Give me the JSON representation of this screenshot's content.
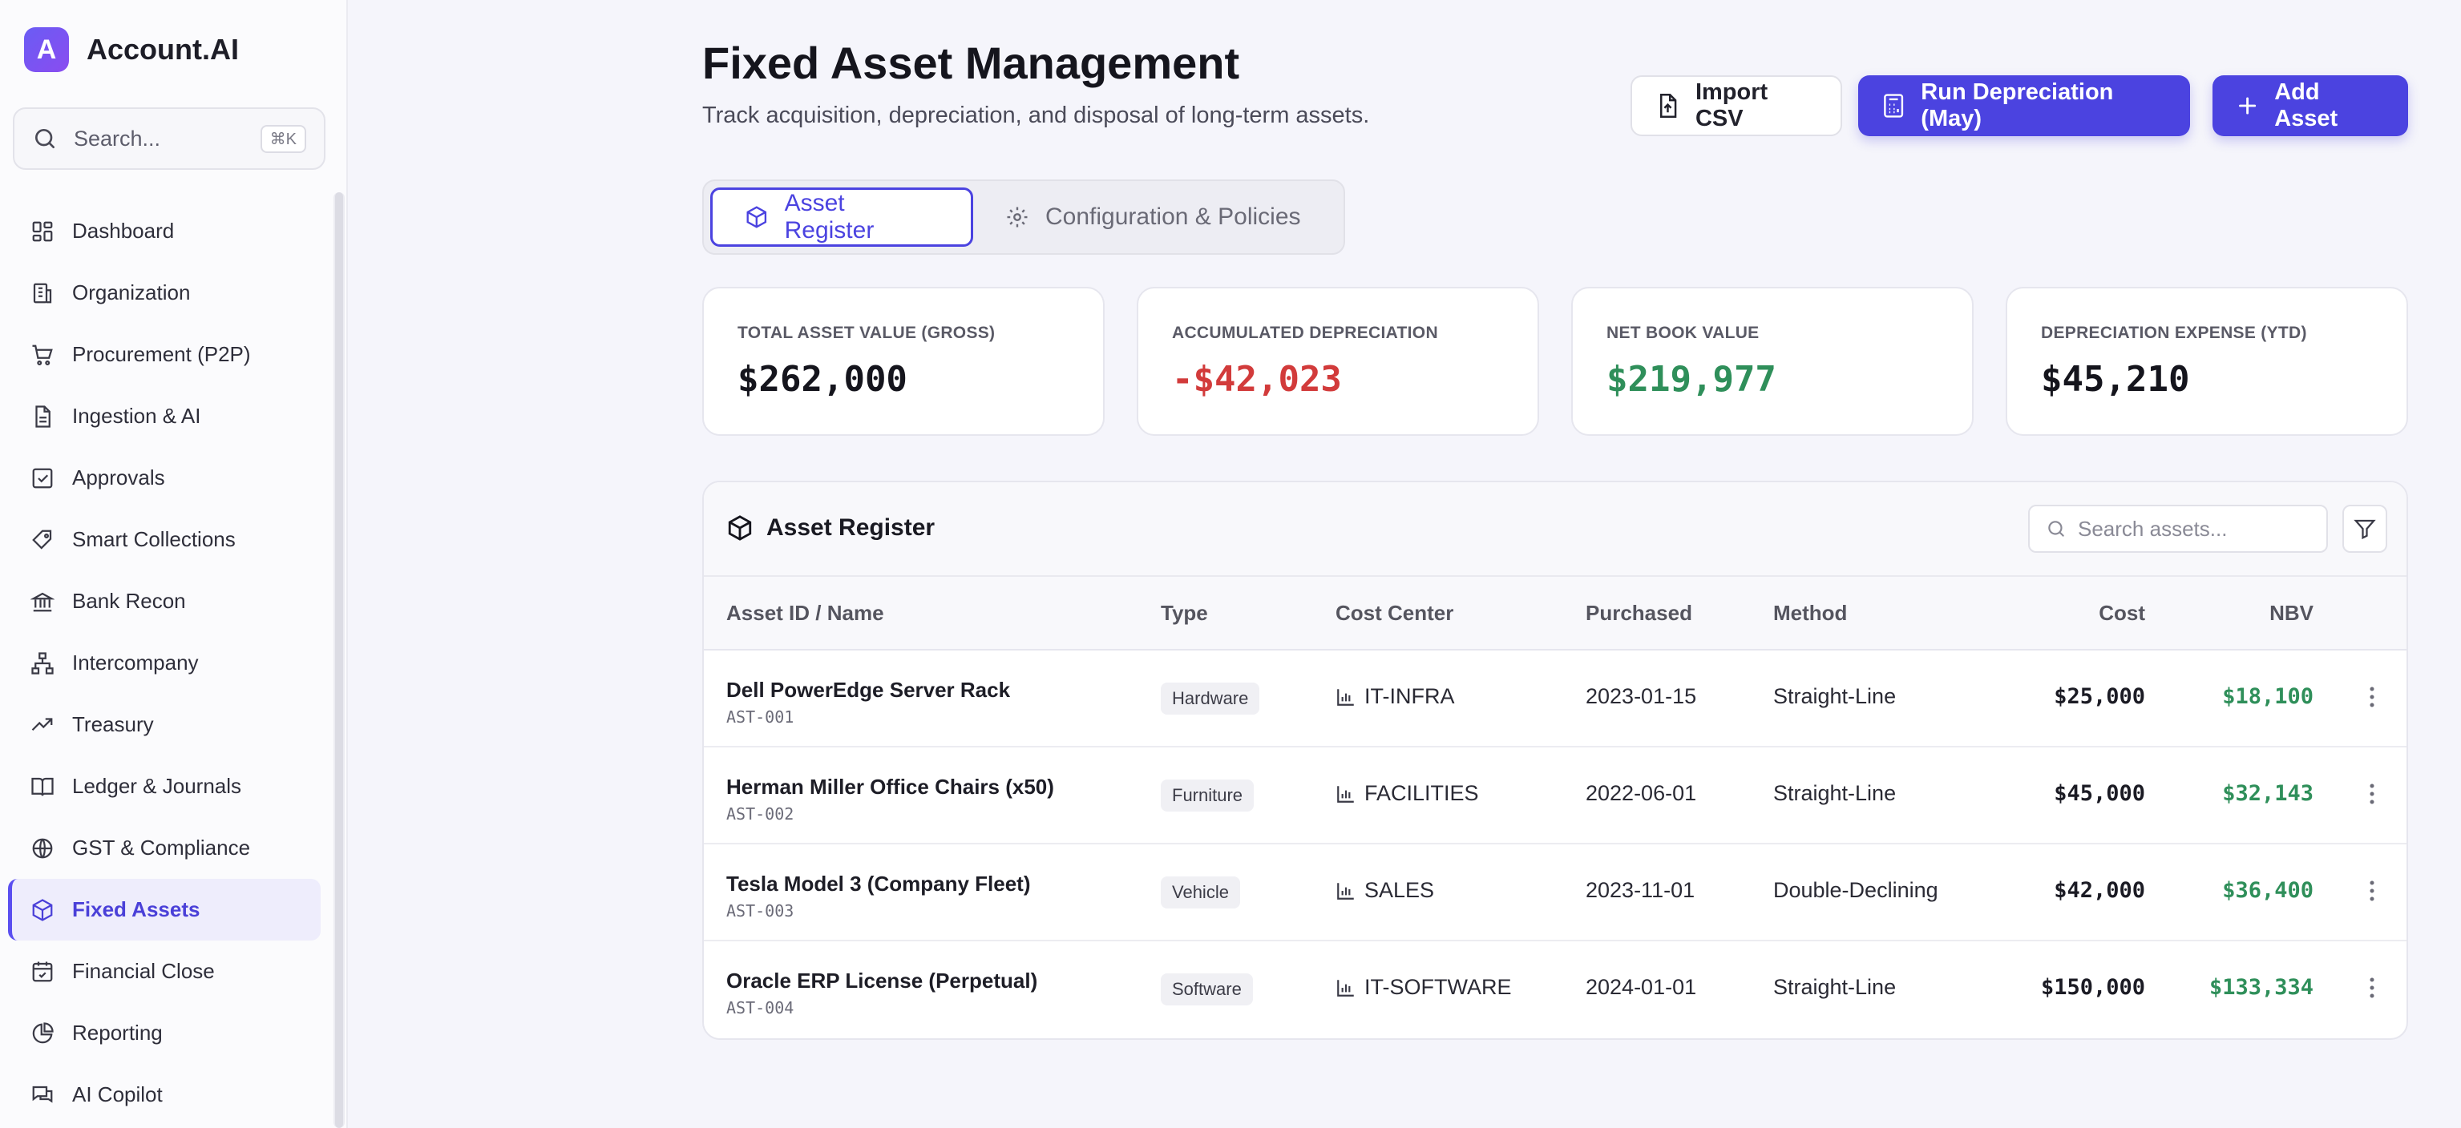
{
  "app": {
    "logo_letter": "A",
    "name": "Account.AI"
  },
  "sidebar": {
    "search_placeholder": "Search...",
    "search_shortcut": "⌘K",
    "items": [
      {
        "label": "Dashboard",
        "icon": "dashboard-icon"
      },
      {
        "label": "Organization",
        "icon": "building-icon"
      },
      {
        "label": "Procurement (P2P)",
        "icon": "cart-icon"
      },
      {
        "label": "Ingestion & AI",
        "icon": "document-icon"
      },
      {
        "label": "Approvals",
        "icon": "check-square-icon"
      },
      {
        "label": "Smart Collections",
        "icon": "tag-icon"
      },
      {
        "label": "Bank Recon",
        "icon": "bank-icon"
      },
      {
        "label": "Intercompany",
        "icon": "network-icon"
      },
      {
        "label": "Treasury",
        "icon": "trend-icon"
      },
      {
        "label": "Ledger & Journals",
        "icon": "book-icon"
      },
      {
        "label": "GST & Compliance",
        "icon": "globe-icon"
      },
      {
        "label": "Fixed Assets",
        "icon": "box-icon",
        "active": true
      },
      {
        "label": "Financial Close",
        "icon": "calendar-icon"
      },
      {
        "label": "Reporting",
        "icon": "pie-icon"
      },
      {
        "label": "AI Copilot",
        "icon": "chat-icon"
      }
    ]
  },
  "header": {
    "title": "Fixed Asset Management",
    "subtitle": "Track acquisition, depreciation, and disposal of long-term assets.",
    "import_label": "Import CSV",
    "run_label": "Run Depreciation (May)",
    "add_label": "Add Asset"
  },
  "tabs": [
    {
      "label": "Asset Register",
      "active": true
    },
    {
      "label": "Configuration & Policies",
      "active": false
    }
  ],
  "stats": [
    {
      "label": "TOTAL ASSET VALUE (GROSS)",
      "value": "$262,000",
      "color": "#15151d"
    },
    {
      "label": "ACCUMULATED DEPRECIATION",
      "value": "-$42,023",
      "color": "#d23b3b"
    },
    {
      "label": "NET BOOK VALUE",
      "value": "$219,977",
      "color": "#2f8f5a"
    },
    {
      "label": "DEPRECIATION EXPENSE (YTD)",
      "value": "$45,210",
      "color": "#15151d"
    }
  ],
  "register": {
    "title": "Asset Register",
    "search_placeholder": "Search assets...",
    "columns": {
      "name": "Asset ID / Name",
      "type": "Type",
      "cost_center": "Cost Center",
      "purchased": "Purchased",
      "method": "Method",
      "cost": "Cost",
      "nbv": "NBV"
    },
    "rows": [
      {
        "name": "Dell PowerEdge Server Rack",
        "id": "AST-001",
        "type": "Hardware",
        "cost_center": "IT-INFRA",
        "purchased": "2023-01-15",
        "method": "Straight-Line",
        "cost": "$25,000",
        "nbv": "$18,100"
      },
      {
        "name": "Herman Miller Office Chairs (x50)",
        "id": "AST-002",
        "type": "Furniture",
        "cost_center": "FACILITIES",
        "purchased": "2022-06-01",
        "method": "Straight-Line",
        "cost": "$45,000",
        "nbv": "$32,143"
      },
      {
        "name": "Tesla Model 3 (Company Fleet)",
        "id": "AST-003",
        "type": "Vehicle",
        "cost_center": "SALES",
        "purchased": "2023-11-01",
        "method": "Double-Declining",
        "cost": "$42,000",
        "nbv": "$36,400"
      },
      {
        "name": "Oracle ERP License (Perpetual)",
        "id": "AST-004",
        "type": "Software",
        "cost_center": "IT-SOFTWARE",
        "purchased": "2024-01-01",
        "method": "Straight-Line",
        "cost": "$150,000",
        "nbv": "$133,334"
      }
    ]
  },
  "colors": {
    "accent": "#4b43e0",
    "positive": "#2f8f5a",
    "negative": "#d23b3b"
  }
}
